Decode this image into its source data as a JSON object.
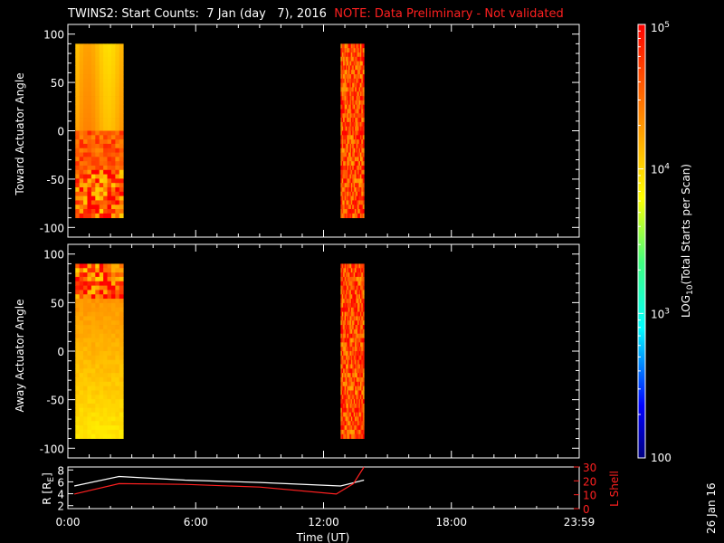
{
  "title": {
    "main": "TWINS2: Start Counts:  7 Jan (day   7), 2016",
    "note": "NOTE: Data Preliminary - Not validated"
  },
  "colorbar": {
    "label_main": "LOG",
    "label_sub": "10",
    "label_rest": "(Total Starts per Scan)",
    "ticks": [
      {
        "base": "10",
        "exp": "5"
      },
      {
        "base": "10",
        "exp": "4"
      },
      {
        "base": "10",
        "exp": "3"
      },
      {
        "base": "100",
        "exp": ""
      }
    ],
    "range_log": [
      2,
      5
    ]
  },
  "date_stamp": "26 Jan 16",
  "chart_data": [
    {
      "type": "heatmap",
      "ylabel": "Toward Actuator Angle",
      "ylim": [
        -110,
        110
      ],
      "yticks": [
        "100",
        "50",
        "0",
        "-50",
        "-100"
      ],
      "xlim_hours": [
        0,
        24
      ],
      "blocks": [
        {
          "t_start": 0.35,
          "t_end": 2.6,
          "angle_min": -90,
          "angle_max": 90,
          "pattern": "smooth-upper-noisy-lower",
          "log_upper": 4.3,
          "log_lower": 4.6
        },
        {
          "t_start": 12.8,
          "t_end": 13.9,
          "angle_min": -90,
          "angle_max": 90,
          "pattern": "noisy",
          "log_typical": 4.7
        }
      ]
    },
    {
      "type": "heatmap",
      "ylabel": "Away Actuator Angle",
      "ylim": [
        -110,
        110
      ],
      "yticks": [
        "100",
        "50",
        "0",
        "-50",
        "-100"
      ],
      "xlim_hours": [
        0,
        24
      ],
      "blocks": [
        {
          "t_start": 0.35,
          "t_end": 2.6,
          "angle_min": -90,
          "angle_max": 90,
          "pattern": "noisy-top-smooth-rest",
          "log_upper": 4.6,
          "log_lower": 3.9
        },
        {
          "t_start": 12.8,
          "t_end": 13.9,
          "angle_min": -90,
          "angle_max": 90,
          "pattern": "noisy",
          "log_typical": 4.7
        }
      ]
    },
    {
      "type": "line",
      "ylabel_left": "R [R",
      "ylabel_left_sub": "E",
      "ylabel_left_end": "]",
      "ylabel_right": "L Shell",
      "ylim_left": [
        1.5,
        8.5
      ],
      "yticks_left": [
        "8",
        "6",
        "4",
        "2"
      ],
      "ylim_right": [
        0,
        30
      ],
      "yticks_right": [
        "30",
        "20",
        "10",
        "0"
      ],
      "xlabel": "Time (UT)",
      "xticks": [
        "0:00",
        "6:00",
        "12:00",
        "18:00",
        "23:59"
      ],
      "series": [
        {
          "color": "#ffffff",
          "axis": "left",
          "x": [
            0.3,
            2.4,
            5.5,
            9.0,
            12.8,
            13.9
          ],
          "y": [
            5.3,
            6.9,
            6.3,
            5.9,
            5.3,
            6.3
          ]
        },
        {
          "color": "#ff2020",
          "axis": "right",
          "x": [
            0.3,
            2.4,
            5.5,
            9.0,
            12.6,
            13.4,
            13.9
          ],
          "y": [
            10.5,
            18.0,
            17.5,
            15.5,
            10.5,
            18.0,
            30.0
          ]
        }
      ]
    }
  ]
}
